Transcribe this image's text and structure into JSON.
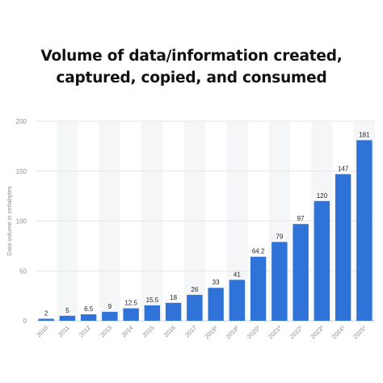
{
  "title_lines": [
    "Volume of data/information created,",
    "captured, copied, and consumed"
  ],
  "colors": {
    "bar": "#2f73d8",
    "shade": "#f5f6f8",
    "grid": "#e3e6ea",
    "tick_text": "#8a8f96",
    "label_text": "#222222"
  },
  "chart_data": {
    "type": "bar",
    "title": "Volume of data/information created, captured, copied, and consumed",
    "xlabel": "",
    "ylabel": "Data volume in zettabytes",
    "ylim": [
      0,
      200
    ],
    "yticks": [
      "0",
      "50",
      "100",
      "150",
      "200"
    ],
    "grid": true,
    "legend": "none",
    "categories": [
      "2010",
      "2011",
      "2012",
      "2013",
      "2014",
      "2015",
      "2016",
      "2017",
      "2018*",
      "2019*",
      "2020*",
      "2021*",
      "2022*",
      "2023*",
      "2024*",
      "2025*"
    ],
    "values": [
      2,
      5,
      6.5,
      9,
      12.5,
      15.5,
      18,
      26,
      33,
      41,
      64.2,
      79,
      97,
      120,
      147,
      181
    ],
    "value_labels": [
      "2",
      "5",
      "6.5",
      "9",
      "12.5",
      "15.5",
      "18",
      "26",
      "33",
      "41",
      "64.2",
      "79",
      "97",
      "120",
      "147",
      "181"
    ]
  }
}
